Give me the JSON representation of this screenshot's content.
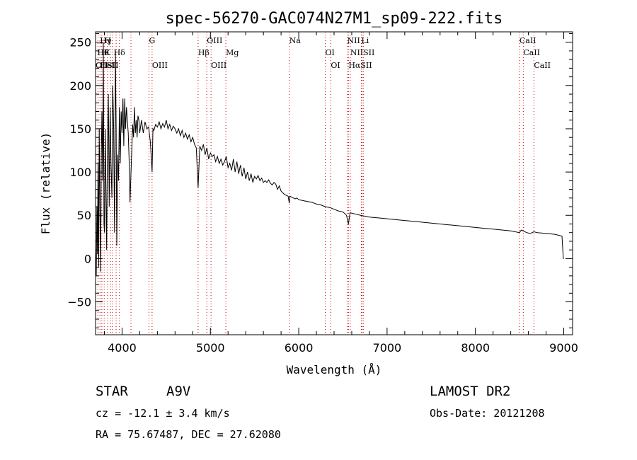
{
  "chart_data": {
    "type": "line",
    "title": "spec-56270-GAC074N27M1_sp09-222.fits",
    "xlabel": "Wavelength (Å)",
    "ylabel": "Flux (relative)",
    "xlim": [
      3700,
      9100
    ],
    "ylim": [
      -88,
      262
    ],
    "xticks": [
      4000,
      5000,
      6000,
      7000,
      8000,
      9000
    ],
    "yticks": [
      -50,
      0,
      50,
      100,
      150,
      200,
      250
    ],
    "grid": false,
    "series": [
      {
        "x": [
          3700,
          3708,
          3715,
          3722,
          3728,
          3735,
          3742,
          3750,
          3758,
          3765,
          3772,
          3780,
          3788,
          3795,
          3802,
          3810,
          3818,
          3826,
          3835,
          3845,
          3855,
          3865,
          3875,
          3885,
          3895,
          3905,
          3915,
          3925,
          3933,
          3940,
          3950,
          3960,
          3970,
          3980,
          3990,
          4000,
          4010,
          4020,
          4030,
          4040,
          4050,
          4060,
          4070,
          4080,
          4090,
          4101,
          4110,
          4120,
          4130,
          4140,
          4150,
          4160,
          4170,
          4180,
          4190,
          4200,
          4220,
          4240,
          4260,
          4280,
          4300,
          4320,
          4340,
          4350,
          4360,
          4380,
          4400,
          4420,
          4440,
          4460,
          4480,
          4500,
          4520,
          4540,
          4560,
          4580,
          4600,
          4620,
          4640,
          4660,
          4680,
          4700,
          4720,
          4740,
          4760,
          4780,
          4800,
          4820,
          4840,
          4861,
          4880,
          4900,
          4920,
          4940,
          4960,
          4980,
          5000,
          5020,
          5040,
          5060,
          5080,
          5100,
          5120,
          5140,
          5160,
          5180,
          5200,
          5220,
          5240,
          5260,
          5280,
          5300,
          5320,
          5340,
          5360,
          5380,
          5400,
          5420,
          5440,
          5460,
          5480,
          5500,
          5520,
          5540,
          5560,
          5580,
          5600,
          5620,
          5640,
          5660,
          5680,
          5700,
          5720,
          5740,
          5760,
          5780,
          5800,
          5820,
          5840,
          5860,
          5880,
          5893,
          5900,
          5920,
          5940,
          5960,
          5980,
          6000,
          6050,
          6100,
          6150,
          6200,
          6250,
          6300,
          6350,
          6400,
          6450,
          6500,
          6540,
          6563,
          6580,
          6620,
          6700,
          6800,
          6900,
          7000,
          7100,
          7200,
          7300,
          7400,
          7500,
          7600,
          7700,
          7800,
          7900,
          8000,
          8100,
          8200,
          8300,
          8400,
          8498,
          8520,
          8542,
          8580,
          8620,
          8662,
          8700,
          8800,
          8900,
          8980,
          8995,
          9000
        ],
        "values": [
          10,
          -20,
          60,
          5,
          110,
          -10,
          150,
          60,
          -15,
          120,
          170,
          90,
          250,
          40,
          30,
          150,
          80,
          10,
          130,
          190,
          60,
          175,
          110,
          70,
          200,
          150,
          30,
          240,
          150,
          15,
          120,
          90,
          175,
          110,
          170,
          145,
          185,
          130,
          185,
          150,
          175,
          160,
          145,
          115,
          65,
          100,
          125,
          155,
          140,
          175,
          145,
          160,
          140,
          165,
          160,
          145,
          160,
          145,
          158,
          150,
          152,
          135,
          100,
          150,
          148,
          155,
          152,
          158,
          150,
          156,
          152,
          160,
          150,
          155,
          148,
          153,
          150,
          145,
          150,
          142,
          148,
          140,
          145,
          138,
          143,
          135,
          140,
          132,
          128,
          82,
          130,
          125,
          132,
          120,
          128,
          115,
          122,
          118,
          120,
          112,
          118,
          110,
          115,
          108,
          112,
          118,
          105,
          110,
          102,
          115,
          100,
          112,
          98,
          108,
          95,
          105,
          92,
          100,
          90,
          98,
          88,
          95,
          92,
          96,
          90,
          93,
          88,
          90,
          88,
          91,
          87,
          85,
          88,
          86,
          80,
          84,
          78,
          76,
          74,
          73,
          72,
          64,
          72,
          71,
          70,
          69,
          70,
          68,
          67,
          66,
          65,
          63,
          62,
          60,
          59,
          57,
          55,
          54,
          50,
          40,
          53,
          52,
          50,
          48,
          47,
          46,
          45,
          44,
          43,
          42,
          41,
          40,
          39,
          38,
          37,
          36,
          35,
          34,
          33,
          32,
          30,
          33,
          32,
          30,
          29,
          31,
          30,
          29,
          28,
          26,
          0,
          0
        ]
      }
    ],
    "line_markers": [
      {
        "label": "Hγ",
        "x": 3750,
        "row": 0
      },
      {
        "label": "H",
        "x": 3800,
        "row": 0
      },
      {
        "label": "Hθ",
        "x": 3720,
        "row": 1
      },
      {
        "label": "K",
        "x": 3800,
        "row": 1
      },
      {
        "label": "Hδ",
        "x": 3905,
        "row": 1
      },
      {
        "label": "G",
        "x": 4305,
        "row": 0
      },
      {
        "label": "OII",
        "x": 3700,
        "row": 2
      },
      {
        "label": "HeI",
        "x": 3750,
        "row": 2
      },
      {
        "label": "SII",
        "x": 3830,
        "row": 2
      },
      {
        "label": "OIII",
        "x": 4340,
        "row": 2
      },
      {
        "label": "OIII",
        "x": 4960,
        "row": 0
      },
      {
        "label": "Hβ",
        "x": 4861,
        "row": 1
      },
      {
        "label": "Mg",
        "x": 5175,
        "row": 1
      },
      {
        "label": "OIII",
        "x": 5007,
        "row": 2
      },
      {
        "label": "Na",
        "x": 5893,
        "row": 0
      },
      {
        "label": "NII",
        "x": 6548,
        "row": 0
      },
      {
        "label": "Li",
        "x": 6708,
        "row": 0
      },
      {
        "label": "OI",
        "x": 6300,
        "row": 1
      },
      {
        "label": "NIISII",
        "x": 6583,
        "row": 1
      },
      {
        "label": "OI",
        "x": 6363,
        "row": 2
      },
      {
        "label": "HαSII",
        "x": 6563,
        "row": 2
      },
      {
        "label": "CaII",
        "x": 8498,
        "row": 0
      },
      {
        "label": "CaII",
        "x": 8542,
        "row": 1
      },
      {
        "label": "CaII",
        "x": 8662,
        "row": 2
      }
    ],
    "marker_lines_x": [
      3727,
      3750,
      3771,
      3798,
      3835,
      3869,
      3889,
      3933,
      3970,
      4101,
      4305,
      4340,
      4861,
      4959,
      5007,
      5175,
      5893,
      6300,
      6363,
      6548,
      6563,
      6583,
      6708,
      6716,
      6731,
      8498,
      8542,
      8662
    ],
    "marker_line_color": "#cc0000"
  },
  "footer": {
    "object_type": "STAR",
    "subclass": "A9V",
    "survey": "LAMOST DR2",
    "cz": "cz = -12.1 ± 3.4 km/s",
    "obs_date": "Obs-Date: 20121208",
    "coords": "RA =  75.67487, DEC =  27.62080"
  }
}
